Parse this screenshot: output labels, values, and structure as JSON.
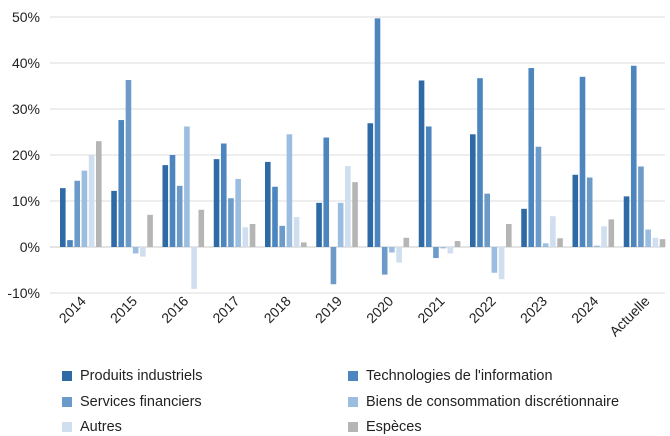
{
  "chart_data": {
    "type": "bar",
    "categories": [
      "2014",
      "2015",
      "2016",
      "2017",
      "2018",
      "2019",
      "2020",
      "2021",
      "2022",
      "2023",
      "2024",
      "Actuelle"
    ],
    "ylim": [
      -10,
      50
    ],
    "yticks": [
      -10,
      0,
      10,
      20,
      30,
      40,
      50
    ],
    "ytick_labels": [
      "-10%",
      "0%",
      "10%",
      "20%",
      "30%",
      "40%",
      "50%"
    ],
    "grid": true,
    "legend_position": "bottom",
    "series": [
      {
        "name": "Produits industriels",
        "color": "#2e6aa6",
        "values": [
          12.8,
          12.2,
          17.8,
          19.1,
          18.5,
          9.6,
          26.9,
          36.2,
          24.5,
          8.3,
          15.7,
          11.0
        ]
      },
      {
        "name": "Technologies de l'information",
        "color": "#4d86bf",
        "values": [
          1.5,
          27.6,
          20.0,
          22.5,
          13.1,
          23.8,
          49.7,
          26.2,
          36.7,
          38.9,
          37.0,
          39.4
        ]
      },
      {
        "name": "Services financiers",
        "color": "#6d9bc9",
        "values": [
          14.4,
          36.3,
          13.3,
          10.6,
          4.6,
          -8.1,
          -6.0,
          -2.4,
          11.6,
          21.8,
          15.1,
          17.5
        ]
      },
      {
        "name": "Biens de consommation discrétionnaire",
        "color": "#9bbde0",
        "values": [
          16.6,
          -1.4,
          26.2,
          14.8,
          24.5,
          9.6,
          -1.2,
          -0.3,
          -5.6,
          0.8,
          0.3,
          3.8
        ]
      },
      {
        "name": "Autres",
        "color": "#cfdff0",
        "values": [
          20.0,
          -2.1,
          -9.1,
          4.3,
          6.5,
          17.6,
          -3.4,
          -1.4,
          -7.0,
          6.7,
          4.5,
          2.0
        ]
      },
      {
        "name": "Espèces",
        "color": "#b5b5b5",
        "values": [
          23.0,
          7.0,
          8.1,
          5.0,
          1.0,
          14.1,
          2.0,
          1.3,
          5.0,
          1.9,
          6.0,
          1.7
        ]
      }
    ]
  }
}
